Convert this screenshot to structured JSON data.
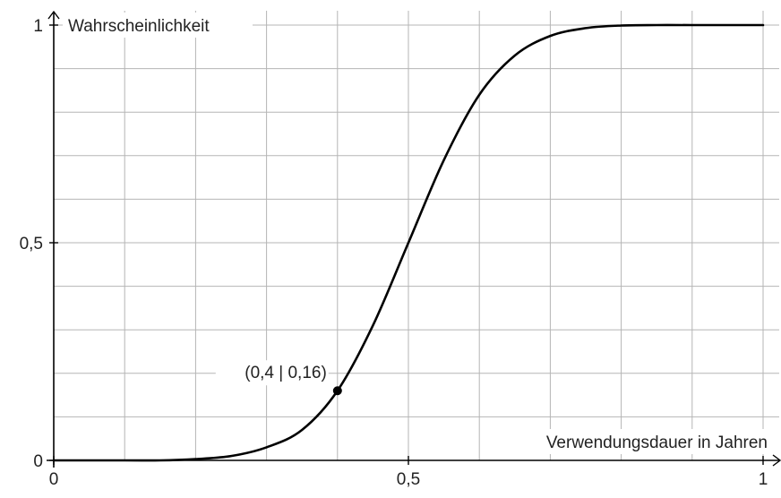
{
  "chart_data": {
    "type": "line",
    "xlabel": "Verwendungsdauer in Jahren",
    "ylabel": "Wahrscheinlichkeit",
    "xlim": [
      0,
      1.0
    ],
    "ylim": [
      0,
      1
    ],
    "grid": true,
    "x_ticks": [
      {
        "value": 0,
        "label": "0"
      },
      {
        "value": 0.5,
        "label": "0,5"
      },
      {
        "value": 1,
        "label": "1"
      }
    ],
    "y_ticks": [
      {
        "value": 0,
        "label": "0"
      },
      {
        "value": 0.5,
        "label": "0,5"
      },
      {
        "value": 1,
        "label": "1"
      }
    ],
    "series": [
      {
        "x": [
          0.0,
          0.1,
          0.15,
          0.2,
          0.25,
          0.3,
          0.35,
          0.4,
          0.45,
          0.5,
          0.55,
          0.6,
          0.65,
          0.7,
          0.75,
          0.8,
          0.85,
          0.9,
          1.0
        ],
        "y": [
          0.0,
          0.0,
          0.0,
          0.003,
          0.01,
          0.03,
          0.07,
          0.16,
          0.31,
          0.5,
          0.69,
          0.84,
          0.93,
          0.975,
          0.993,
          0.999,
          1.0,
          1.0,
          1.0
        ]
      }
    ],
    "annotations": [
      {
        "x": 0.4,
        "y": 0.16,
        "label": "(0,4 | 0,16)"
      }
    ],
    "colors": {
      "curve": "#000000",
      "grid": "#b5b5b5",
      "axis": "#000000"
    }
  }
}
